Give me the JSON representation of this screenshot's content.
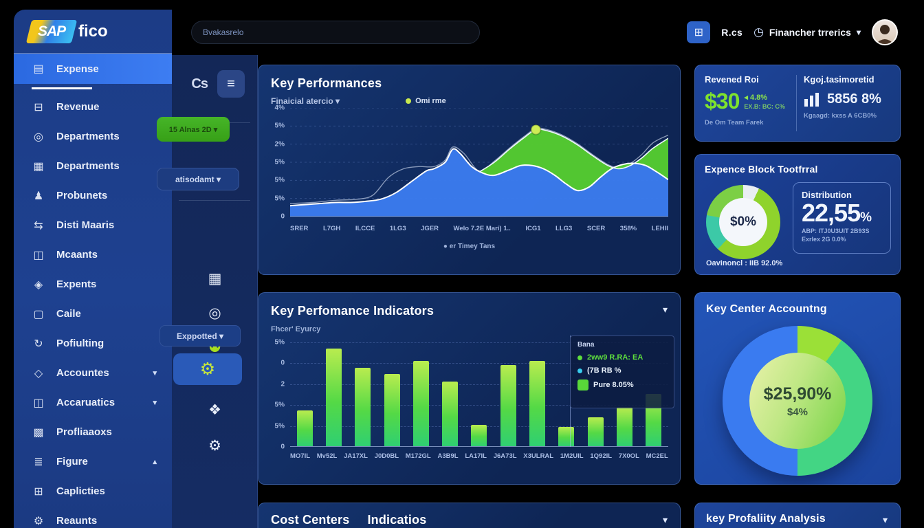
{
  "brand": {
    "name": "SAP",
    "suffix": "fico"
  },
  "topbar": {
    "search_placeholder": "Bvakasrelo",
    "apps_icon": "⊞",
    "apps_label": "R.cs",
    "metrics_icon": "◷",
    "metrics_label": "Financher trrerics",
    "chevron": "▾"
  },
  "sidebar": {
    "items": [
      {
        "label": "Expense",
        "icon": "▤",
        "active": true
      },
      {
        "label": "Revenue",
        "icon": "⊟"
      },
      {
        "label": "Departments",
        "icon": "◎"
      },
      {
        "label": "Departments",
        "icon": "▦"
      },
      {
        "label": "Probunets",
        "icon": "♟"
      },
      {
        "label": "Disti Maaris",
        "icon": "⇆"
      },
      {
        "label": "Mcaants",
        "icon": "◫"
      },
      {
        "label": "Expents",
        "icon": "◈"
      },
      {
        "label": "Caile",
        "icon": "▢"
      },
      {
        "label": "Pofiulting",
        "icon": "↻"
      },
      {
        "label": "Accountes",
        "icon": "◇",
        "chevron": "▾"
      },
      {
        "label": "Accaruatics",
        "icon": "◫",
        "chevron": "▾"
      },
      {
        "label": "Profliaaoxs",
        "icon": "▩"
      },
      {
        "label": "Figure",
        "icon": "≣",
        "chevron": "▴"
      },
      {
        "label": "Caplicties",
        "icon": "⊞"
      },
      {
        "label": "Reaunts",
        "icon": "⚙"
      }
    ]
  },
  "rail": {
    "cs_glyph": "Cs",
    "burger_icon": "≡",
    "green_button": "15 Alnas 2D ▾",
    "dropdown1": "atisodamt ▾",
    "exported": "Exppotted ▾",
    "icons": [
      "▦",
      "◎",
      "⚉"
    ],
    "active_tool_icon": "⚙",
    "lower_icons": [
      "❖",
      "⚙"
    ]
  },
  "chart_data": [
    {
      "type": "area",
      "title": "Key Performances",
      "filter": "Finaicial atercio ▾",
      "legend": "Omi rme",
      "caption": "● er Timey Tans",
      "y_labels": [
        "4%",
        "5%",
        "2%",
        "5%",
        "5%",
        "5%",
        "0"
      ],
      "x_labels": [
        "SRER",
        "L7GH",
        "ILCCE",
        "1LG3",
        "JGER",
        "Welo 7.2E Mari) 1..",
        "ICG1",
        "LLG3",
        "SCER",
        "358%",
        "LEHII"
      ],
      "series": {
        "blue": [
          [
            0,
            10
          ],
          [
            4,
            11
          ],
          [
            8,
            12
          ],
          [
            12,
            13
          ],
          [
            16,
            13
          ],
          [
            20,
            14
          ],
          [
            24,
            16
          ],
          [
            28,
            22
          ],
          [
            32,
            32
          ],
          [
            36,
            42
          ],
          [
            38,
            44
          ],
          [
            41,
            50
          ],
          [
            43,
            62
          ],
          [
            45,
            58
          ],
          [
            48,
            46
          ],
          [
            51,
            40
          ],
          [
            54,
            38
          ],
          [
            58,
            43
          ],
          [
            61,
            47
          ],
          [
            64,
            47
          ],
          [
            67,
            44
          ],
          [
            70,
            38
          ],
          [
            73,
            30
          ],
          [
            76,
            24
          ],
          [
            79,
            27
          ],
          [
            82,
            36
          ],
          [
            85,
            44
          ],
          [
            88,
            48
          ],
          [
            91,
            49
          ],
          [
            94,
            47
          ],
          [
            97,
            41
          ],
          [
            100,
            34
          ]
        ],
        "green": [
          [
            50,
            41
          ],
          [
            54,
            50
          ],
          [
            58,
            62
          ],
          [
            62,
            73
          ],
          [
            65,
            80
          ],
          [
            68,
            79
          ],
          [
            72,
            74
          ],
          [
            76,
            66
          ],
          [
            80,
            56
          ],
          [
            84,
            47
          ],
          [
            87,
            44
          ],
          [
            90,
            47
          ],
          [
            93,
            54
          ],
          [
            96,
            63
          ],
          [
            100,
            72
          ]
        ],
        "line": [
          [
            0,
            12
          ],
          [
            6,
            13
          ],
          [
            12,
            15
          ],
          [
            18,
            16
          ],
          [
            22,
            20
          ],
          [
            26,
            36
          ],
          [
            30,
            44
          ],
          [
            34,
            46
          ],
          [
            38,
            46
          ],
          [
            41,
            52
          ],
          [
            43,
            64
          ],
          [
            46,
            58
          ],
          [
            50,
            42
          ],
          [
            54,
            51
          ],
          [
            58,
            63
          ],
          [
            62,
            74
          ],
          [
            65,
            81
          ],
          [
            68,
            80
          ],
          [
            72,
            75
          ],
          [
            76,
            67
          ],
          [
            80,
            57
          ],
          [
            84,
            48
          ],
          [
            87,
            45
          ],
          [
            90,
            49
          ],
          [
            93,
            57
          ],
          [
            96,
            68
          ],
          [
            100,
            75
          ]
        ]
      },
      "marker": [
        65,
        80
      ],
      "colors": {
        "blue": "#3b7bed",
        "green": "#56cf2f",
        "line": "#d9e2f5",
        "marker": "#cdec55"
      }
    },
    {
      "type": "bar",
      "title": "Key Perfomance Indicators",
      "subtitle": "Fhcer' Eyurcy",
      "y_labels": [
        "5%",
        "0",
        "2",
        "5%",
        "5%",
        "0"
      ],
      "x_labels": [
        "MO7IL",
        "Mv52L",
        "JA17XL",
        "J0D0BL",
        "M172GL",
        "A3B9L",
        "LA17IL",
        "J6A73L",
        "X3ULRAL",
        "1M2UIL",
        "1Q92IL",
        "7X0OL",
        "MC2EL"
      ],
      "values": [
        35,
        95,
        76,
        70,
        83,
        63,
        21,
        79,
        83,
        19,
        28,
        38,
        51
      ],
      "tooltip": {
        "title": "Bana",
        "items": [
          {
            "shape": "dot",
            "color": "#5ede3d",
            "text": "2ww9 R.RA: EA",
            "text_color": "#5ede3d"
          },
          {
            "shape": "dot",
            "color": "#38cdf0",
            "text": "(7B RB %",
            "text_color": "#eaf2fc"
          },
          {
            "shape": "square",
            "color": "#59d839",
            "text": "Pure 8.05%",
            "text_color": "#eaf2fc"
          }
        ]
      }
    },
    {
      "type": "pie",
      "title": "Expence Block Tootfrral",
      "center": "$0%",
      "segments": [
        {
          "color": "#e9eef3",
          "pct": 7
        },
        {
          "color": "#8fd32c",
          "pct": 55
        },
        {
          "color": "#3cc9a7",
          "pct": 16
        },
        {
          "color": "#7ccf45",
          "pct": 22
        }
      ]
    },
    {
      "type": "pie",
      "title": "Key Center Accountng",
      "center": "$25,90%",
      "center_sub": "$4%",
      "segments": [
        {
          "color": "#9be037",
          "pct": 10
        },
        {
          "color": "#43d584",
          "pct": 40
        },
        {
          "color": "#3a7bf0",
          "pct": 50
        }
      ]
    }
  ],
  "cost_centers": {
    "title": "Cost Centers",
    "title2": "Indicatios",
    "chevron": "▾"
  },
  "right": {
    "roi": {
      "title": "Revened Roi",
      "value": "$30",
      "delta": "◂ 4.8%",
      "sub": "EX.B: BC: C%",
      "footer": "De Om Team Farek",
      "title2": "Kgoj.tasimoretid",
      "value2": "5856 8%",
      "footer2": "Kgaagd: kxss A 6CB0%"
    },
    "expense_block": {
      "footer": "Oavinoncl : IIB 92.0%",
      "box_label": "Distribution",
      "box_value": "22,55",
      "box_pct": "%",
      "box_line1": "ABP: ITJ0U3UIT 2B93S",
      "box_line2": "Exrlex 2G 0.0%"
    },
    "profitability": {
      "title": "key Profaliity Analysis",
      "chevron": "▾"
    }
  }
}
